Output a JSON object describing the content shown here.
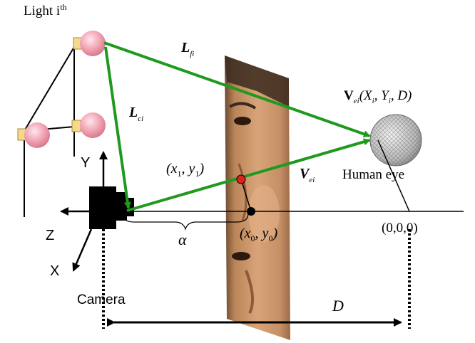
{
  "light": {
    "main": "Light i",
    "sup": "th"
  },
  "vectors": {
    "lf": {
      "main": "L",
      "sub": "fi"
    },
    "lc": {
      "main": "L",
      "sub": "ci"
    },
    "ve_line": {
      "main": "V",
      "sub": "ei"
    },
    "ve_point": {
      "main": "V",
      "sub": "ei",
      "args": "(X",
      "argsub_i1": "i",
      "mid": ", Y",
      "argsub_i2": "i",
      "tail": ", D)"
    }
  },
  "axes": {
    "y": "Y",
    "z": "Z",
    "x": "X"
  },
  "points": {
    "p1": {
      "open": "(x",
      "s1": "1",
      "comma": ", y",
      "s2": "1",
      "close": ")"
    },
    "p0": {
      "open": "(x",
      "s1": "0",
      "comma": ", y",
      "s2": "0",
      "close": ")"
    },
    "origin": "(0,0,0)"
  },
  "labels": {
    "human_eye": "Human eye",
    "camera": "Camera",
    "alpha": "α",
    "distance": "D"
  },
  "colors": {
    "vector": "#1f9a1f",
    "axis": "#000000",
    "bulb": "#f2a8b8",
    "pupil": "#e0201c",
    "face_skin": "#c9946a"
  }
}
